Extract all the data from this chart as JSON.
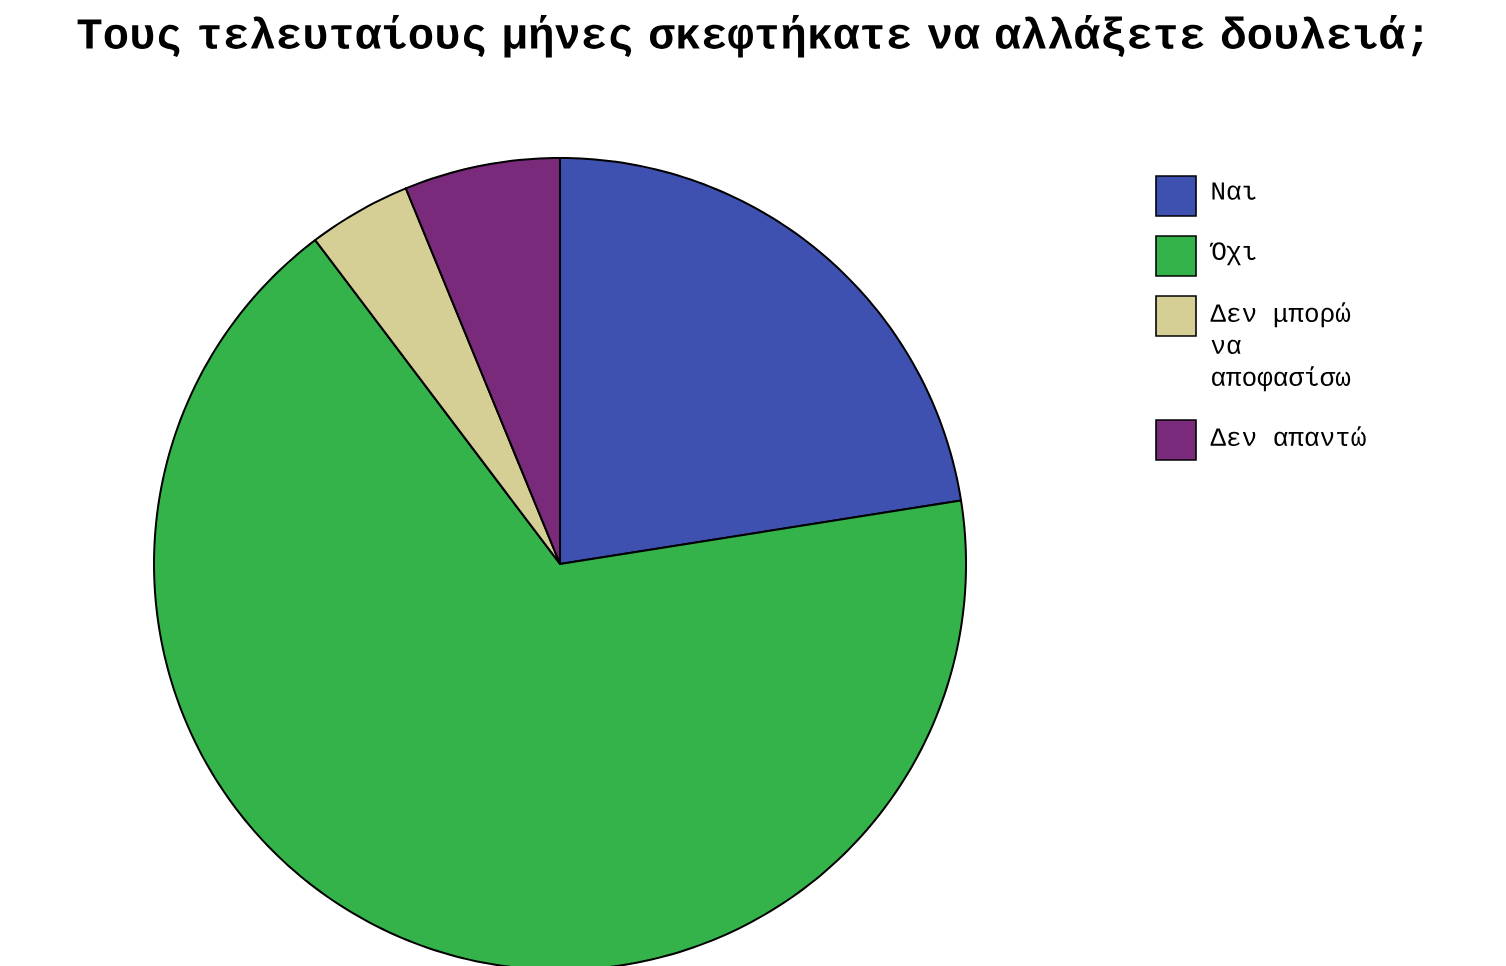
{
  "chart_data": {
    "type": "pie",
    "title": "Τους τελευταίους μήνες σκεφτήκατε να αλλάξετε δουλειά;",
    "categories": [
      "Ναι",
      "Όχι",
      "Δεν μπορώ να αποφασίσω",
      "Δεν απαντώ"
    ],
    "values": [
      22.5,
      67.2,
      4.1,
      6.2
    ],
    "colors": [
      "#3f51b0",
      "#33b34a",
      "#d5cf95",
      "#7a2a7a"
    ],
    "legend": "right"
  }
}
